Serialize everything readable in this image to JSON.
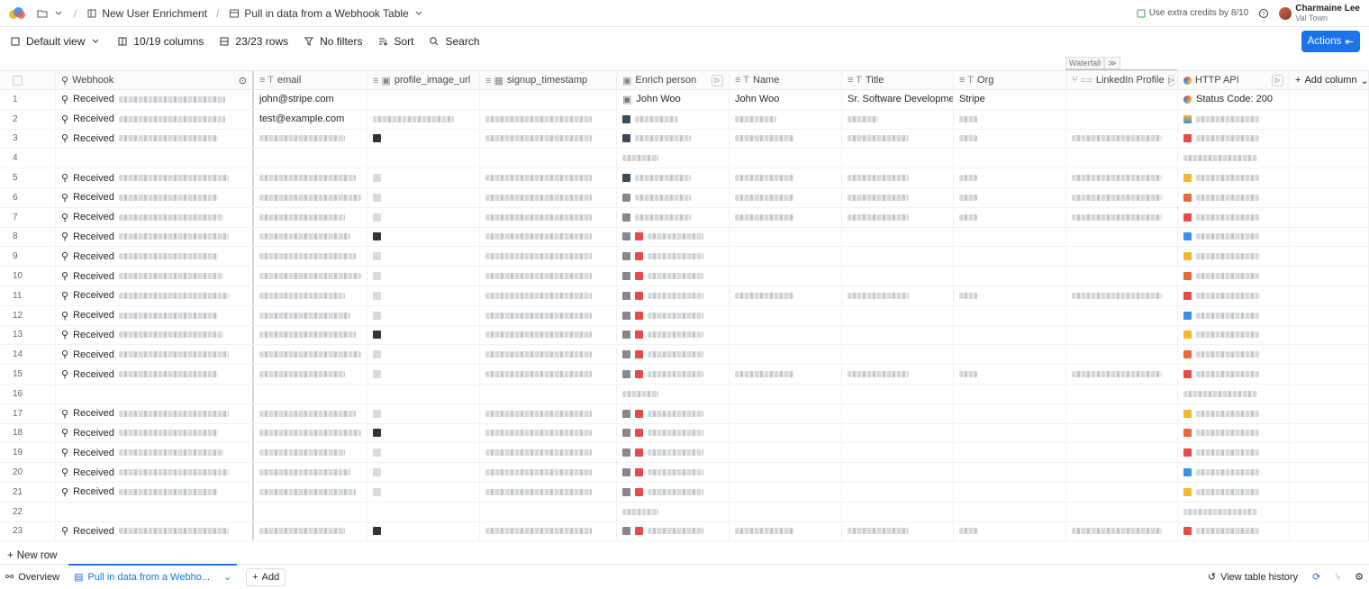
{
  "breadcrumb": {
    "workbook": "New User Enrichment",
    "table": "Pull in data from a Webhook Table"
  },
  "topright": {
    "credits": "Use extra credits by 8/10",
    "user_name": "Charmaine Lee",
    "user_org": "Val Town"
  },
  "toolbar": {
    "view": "Default view",
    "columns": "10/19 columns",
    "rows": "23/23 rows",
    "filters": "No filters",
    "sort": "Sort",
    "search": "Search",
    "actions": "Actions"
  },
  "waterfall": "Waterfall",
  "columns": {
    "webhook": "Webhook",
    "email": "email",
    "profile_image_url": "profile_image_url",
    "signup_timestamp": "signup_timestamp",
    "enrich_person": "Enrich person",
    "name": "Name",
    "title": "Title",
    "org": "Org",
    "linkedin": "LinkedIn Profile",
    "http_api": "HTTP API",
    "add_column": "Add column"
  },
  "received": "Received",
  "row1": {
    "num": "1",
    "email": "john@stripe.com",
    "enrich": "John Woo",
    "name": "John Woo",
    "title": "Sr. Software Development ...",
    "org": "Stripe",
    "http": "Status Code: 200"
  },
  "row2": {
    "num": "2",
    "email": "test@example.com"
  },
  "row_numbers": [
    "3",
    "4",
    "5",
    "6",
    "7",
    "8",
    "9",
    "10",
    "11",
    "12",
    "13",
    "14",
    "15",
    "16",
    "17",
    "18",
    "19",
    "20",
    "21",
    "22",
    "23"
  ],
  "bottom": {
    "new_row": "New row"
  },
  "footer": {
    "overview": "Overview",
    "tab": "Pull in data from a Webho...",
    "add": "Add",
    "history": "View table history"
  }
}
